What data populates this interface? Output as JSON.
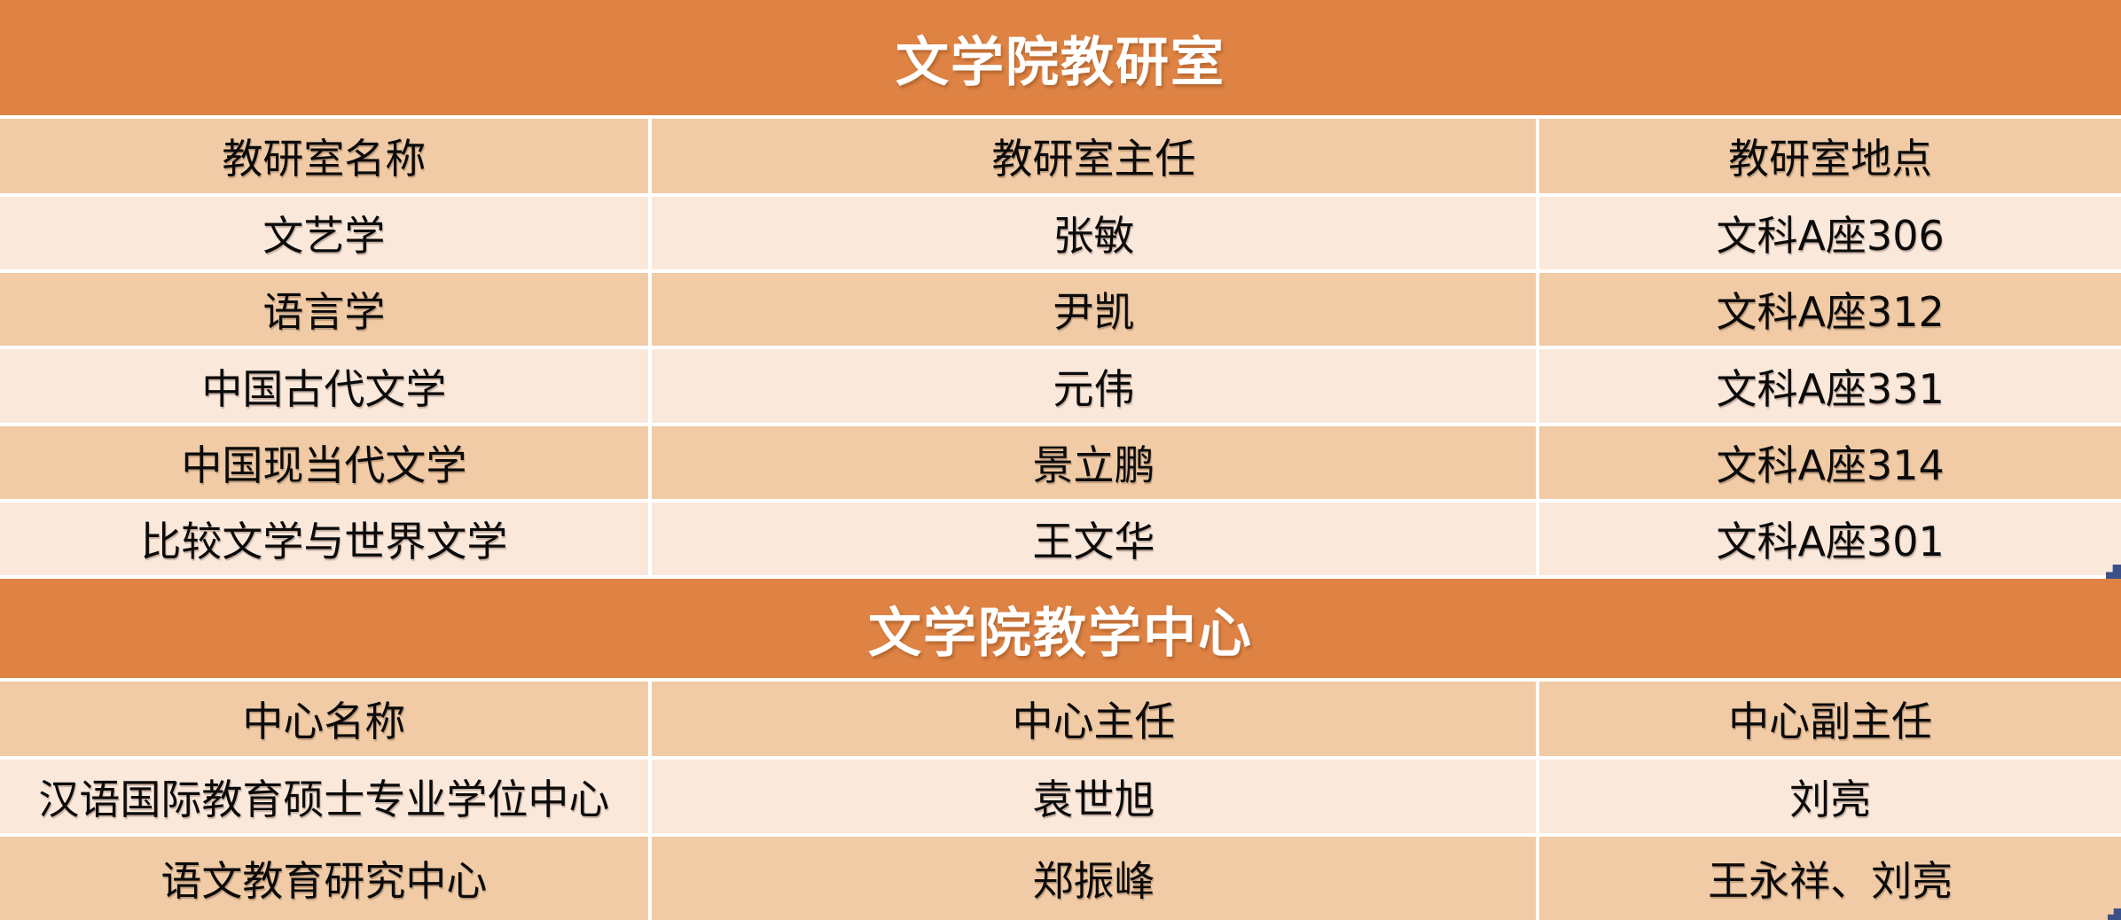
{
  "colors": {
    "header_orange": "#DE8344",
    "row_dark": "#F0CBA6",
    "row_light": "#FAE8DB",
    "grid_white": "#FFFFFF",
    "body_text": "#0B0B0B",
    "title_text": "#FFFFFF",
    "artifact_blue": "#3C5189"
  },
  "section1": {
    "title": "文学院教研室",
    "columns": [
      "教研室名称",
      "教研室主任",
      "教研室地点"
    ],
    "rows": [
      [
        "文艺学",
        "张敏",
        "文科A座306"
      ],
      [
        "语言学",
        "尹凯",
        "文科A座312"
      ],
      [
        "中国古代文学",
        "元伟",
        "文科A座331"
      ],
      [
        "中国现当代文学",
        "景立鹏",
        "文科A座314"
      ],
      [
        "比较文学与世界文学",
        "王文华",
        "文科A座301"
      ]
    ]
  },
  "section2": {
    "title": "文学院教学中心",
    "columns": [
      "中心名称",
      "中心主任",
      "中心副主任"
    ],
    "rows": [
      [
        "汉语国际教育硕士专业学位中心",
        "袁世旭",
        "刘亮"
      ],
      [
        "语文教育研究中心",
        "郑振峰",
        "王永祥、刘亮"
      ]
    ]
  }
}
